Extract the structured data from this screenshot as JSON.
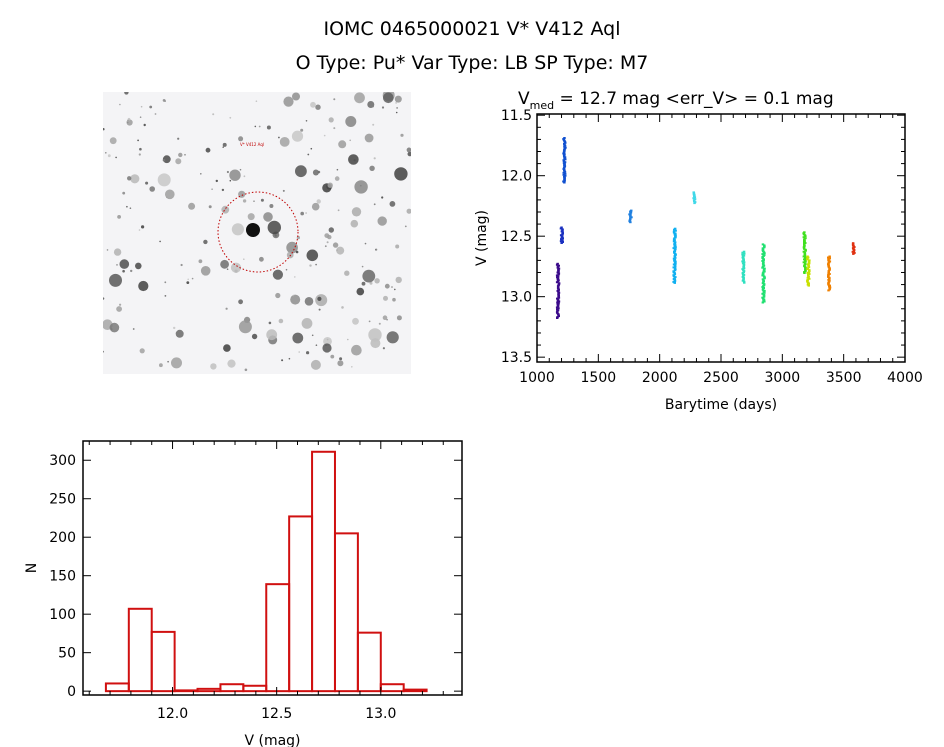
{
  "header": {
    "title_line1": "IOMC 0465000021     V* V412 Aql",
    "title_line2": "O Type: Pu*  Var Type: LB  SP Type: M7"
  },
  "chart_data": [
    {
      "type": "scatter",
      "title_prefix": "V",
      "title_sub": "med",
      "title_rest": " = 12.7 mag <err_V> = 0.1 mag",
      "xlabel": "Barytime (days)",
      "ylabel": "V (mag)",
      "xlim": [
        1000,
        4000
      ],
      "ylim": [
        13.54,
        11.49
      ],
      "y_reversed": true,
      "xticks": [
        1000,
        1500,
        2000,
        2500,
        3000,
        3500,
        4000
      ],
      "yticks": [
        "11.5",
        "12.0",
        "12.5",
        "13.0",
        "13.5"
      ],
      "segments": [
        {
          "x": 1170,
          "ymin": 12.72,
          "ymax": 13.17,
          "color": "#3a0a8a"
        },
        {
          "x": 1200,
          "ymin": 12.42,
          "ymax": 12.55,
          "color": "#1a30c0"
        },
        {
          "x": 1222,
          "ymin": 11.68,
          "ymax": 12.05,
          "color": "#1050d0"
        },
        {
          "x": 1760,
          "ymin": 12.28,
          "ymax": 12.38,
          "color": "#2080e0"
        },
        {
          "x": 2120,
          "ymin": 12.43,
          "ymax": 12.88,
          "color": "#10b0f0"
        },
        {
          "x": 2280,
          "ymin": 12.13,
          "ymax": 12.22,
          "color": "#40d8e8"
        },
        {
          "x": 2680,
          "ymin": 12.62,
          "ymax": 12.88,
          "color": "#30e0c0"
        },
        {
          "x": 2845,
          "ymin": 12.56,
          "ymax": 13.04,
          "color": "#20e070"
        },
        {
          "x": 3180,
          "ymin": 12.46,
          "ymax": 12.8,
          "color": "#40e020"
        },
        {
          "x": 3210,
          "ymin": 12.66,
          "ymax": 12.9,
          "color": "#c8e000"
        },
        {
          "x": 3380,
          "ymin": 12.66,
          "ymax": 12.94,
          "color": "#f08000"
        },
        {
          "x": 3580,
          "ymin": 12.55,
          "ymax": 12.64,
          "color": "#e03010"
        }
      ]
    },
    {
      "type": "bar",
      "title": "",
      "xlabel": "V (mag)",
      "ylabel": "N",
      "xlim": [
        11.57,
        13.39
      ],
      "ylim": [
        -5,
        325
      ],
      "bin_start": 11.68,
      "bin_width": 0.11,
      "values": [
        10,
        107,
        77,
        1,
        3,
        9,
        7,
        139,
        227,
        311,
        205,
        76,
        9,
        2
      ],
      "color": "#d01010",
      "xticks": [
        "12.0",
        "12.5",
        "13.0"
      ],
      "yticks": [
        "0",
        "50",
        "100",
        "150",
        "200",
        "250",
        "300"
      ]
    }
  ],
  "image": {
    "target_label": "V* V412 Aql",
    "circle_color": "#c00000"
  }
}
